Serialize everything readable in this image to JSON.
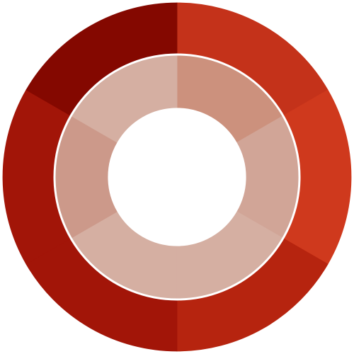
{
  "chart_data": {
    "type": "pie",
    "subtype": "nested-donut",
    "title": "",
    "legend": "none",
    "rings": [
      {
        "name": "",
        "position": "outer",
        "values": [
          1,
          1,
          1,
          1,
          1,
          1
        ],
        "colors": [
          "#C4321A",
          "#CF391D",
          "#B6240F",
          "#A21508",
          "#A21508",
          "#840800"
        ],
        "separators": [
          0,
          60,
          120,
          180,
          240,
          300
        ]
      },
      {
        "name": "",
        "position": "inner",
        "values": [
          1,
          1,
          1,
          1,
          1,
          1
        ],
        "colors": [
          "#CC917D",
          "#D1A597",
          "#D5AFA2",
          "#D5AFA2",
          "#CC998A",
          "#D5AFA2"
        ],
        "separators": [
          0,
          60,
          120,
          240,
          300
        ]
      }
    ]
  }
}
